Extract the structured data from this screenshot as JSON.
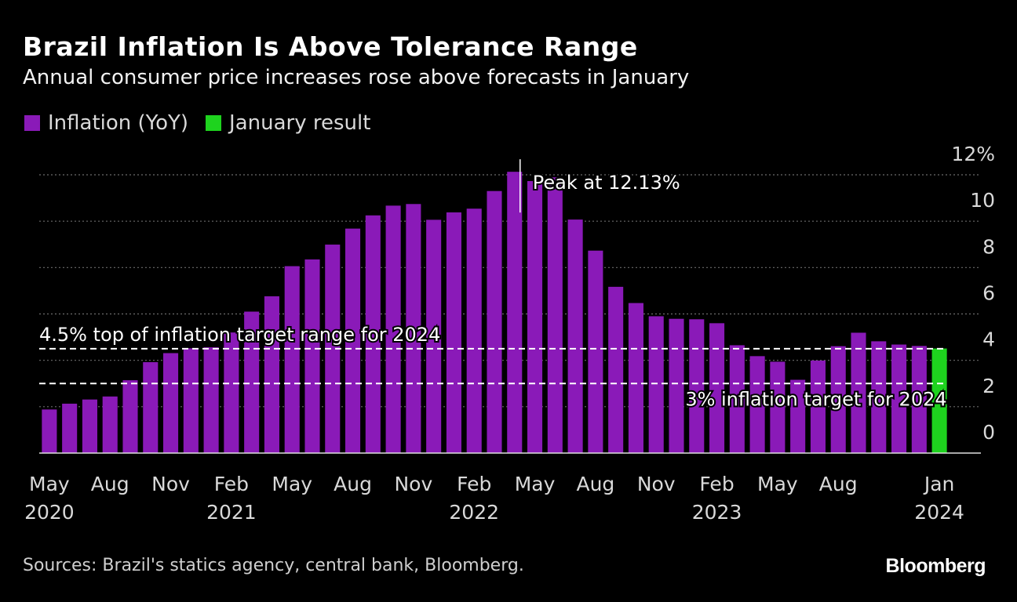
{
  "header": {
    "title": "Brazil Inflation Is Above Tolerance Range",
    "subtitle": "Annual consumer price increases rose above forecasts in January"
  },
  "legend": [
    {
      "label": "Inflation (YoY)",
      "color": "#8a1ab8"
    },
    {
      "label": "January result",
      "color": "#1ed31e"
    }
  ],
  "footer": {
    "source": "Sources: Brazil's statics agency, central bank, Bloomberg.",
    "brand": "Bloomberg"
  },
  "chart_data": {
    "type": "bar",
    "title": "Brazil Inflation Is Above Tolerance Range",
    "ylabel": "",
    "xlabel": "",
    "ylim": [
      0,
      12
    ],
    "yticks": [
      {
        "value": 12,
        "label": "12%"
      },
      {
        "value": 10,
        "label": "10"
      },
      {
        "value": 8,
        "label": "8"
      },
      {
        "value": 6,
        "label": "6"
      },
      {
        "value": 4,
        "label": "4"
      },
      {
        "value": 2,
        "label": "2"
      },
      {
        "value": 0,
        "label": "0"
      }
    ],
    "categories": [
      "May 2020",
      "Jun 2020",
      "Jul 2020",
      "Aug 2020",
      "Sep 2020",
      "Oct 2020",
      "Nov 2020",
      "Dec 2020",
      "Jan 2021",
      "Feb 2021",
      "Mar 2021",
      "Apr 2021",
      "May 2021",
      "Jun 2021",
      "Jul 2021",
      "Aug 2021",
      "Sep 2021",
      "Oct 2021",
      "Nov 2021",
      "Dec 2021",
      "Jan 2022",
      "Feb 2022",
      "Mar 2022",
      "Apr 2022",
      "May 2022",
      "Jun 2022",
      "Jul 2022",
      "Aug 2022",
      "Sep 2022",
      "Oct 2022",
      "Nov 2022",
      "Dec 2022",
      "Jan 2023",
      "Feb 2023",
      "Mar 2023",
      "Apr 2023",
      "May 2023",
      "Jun 2023",
      "Jul 2023",
      "Aug 2023",
      "Sep 2023",
      "Oct 2023",
      "Nov 2023",
      "Dec 2023",
      "Jan 2024"
    ],
    "values": [
      1.88,
      2.13,
      2.31,
      2.44,
      3.14,
      3.92,
      4.31,
      4.52,
      4.56,
      5.2,
      6.1,
      6.76,
      8.06,
      8.35,
      8.99,
      9.68,
      10.25,
      10.67,
      10.74,
      10.06,
      10.38,
      10.54,
      11.3,
      12.13,
      11.73,
      11.89,
      10.07,
      8.73,
      7.17,
      6.47,
      5.9,
      5.79,
      5.77,
      5.6,
      4.65,
      4.18,
      3.94,
      3.16,
      3.99,
      4.61,
      5.19,
      4.82,
      4.68,
      4.62,
      4.51
    ],
    "highlight_index": 44,
    "xtick_labels": [
      {
        "index": 0,
        "month": "May",
        "year": "2020"
      },
      {
        "index": 3,
        "month": "Aug",
        "year": ""
      },
      {
        "index": 6,
        "month": "Nov",
        "year": ""
      },
      {
        "index": 9,
        "month": "Feb",
        "year": "2021"
      },
      {
        "index": 12,
        "month": "May",
        "year": ""
      },
      {
        "index": 15,
        "month": "Aug",
        "year": ""
      },
      {
        "index": 18,
        "month": "Nov",
        "year": ""
      },
      {
        "index": 21,
        "month": "Feb",
        "year": "2022"
      },
      {
        "index": 24,
        "month": "May",
        "year": ""
      },
      {
        "index": 27,
        "month": "Aug",
        "year": ""
      },
      {
        "index": 30,
        "month": "Nov",
        "year": ""
      },
      {
        "index": 33,
        "month": "Feb",
        "year": "2023"
      },
      {
        "index": 36,
        "month": "May",
        "year": ""
      },
      {
        "index": 39,
        "month": "Aug",
        "year": ""
      },
      {
        "index": 44,
        "month": "Jan",
        "year": "2024"
      }
    ],
    "reference_lines": [
      {
        "value": 4.5,
        "label": "4.5% top of inflation target range for 2024",
        "label_position": "above-left"
      },
      {
        "value": 3,
        "label": "3% inflation target for 2024",
        "label_position": "below-right"
      }
    ],
    "annotation": {
      "index": 23,
      "label": "Peak at 12.13%"
    }
  }
}
